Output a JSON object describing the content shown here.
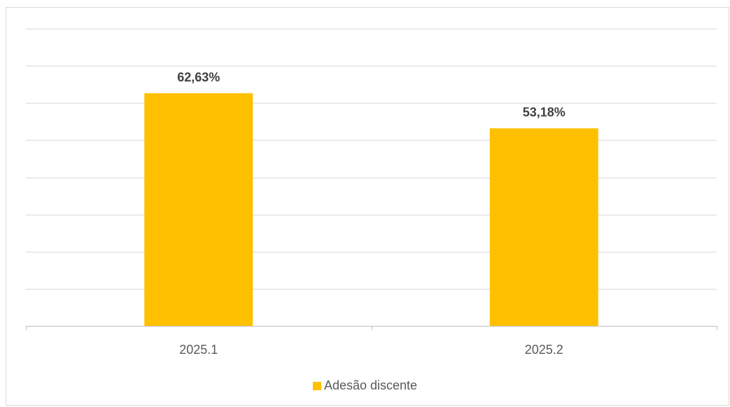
{
  "chart_data": {
    "type": "bar",
    "categories": [
      "2025.1",
      "2025.2"
    ],
    "series": [
      {
        "name": "Adesão discente",
        "values": [
          62.63,
          53.18
        ],
        "labels": [
          "62,63%",
          "53,18%"
        ],
        "color": "#FFC000"
      }
    ],
    "ylim": [
      0,
      80
    ],
    "grid": true,
    "legend": "bottom"
  }
}
